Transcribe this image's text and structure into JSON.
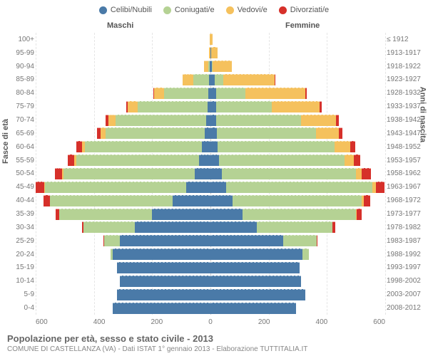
{
  "legend": {
    "items": [
      {
        "label": "Celibi/Nubili",
        "color": "#4a7aa8"
      },
      {
        "label": "Coniugati/e",
        "color": "#b5d294"
      },
      {
        "label": "Vedovi/e",
        "color": "#f5c15d"
      },
      {
        "label": "Divorziati/e",
        "color": "#d6302a"
      }
    ]
  },
  "header": {
    "male": "Maschi",
    "female": "Femmine"
  },
  "axis": {
    "left_title": "Fasce di età",
    "right_title": "Anni di nascita"
  },
  "x_ticks": [
    "600",
    "400",
    "200",
    "0",
    "200",
    "400",
    "600"
  ],
  "x_max": 600,
  "footer": {
    "title": "Popolazione per età, sesso e stato civile - 2013",
    "subtitle": "COMUNE DI CASTELLANZA (VA) - Dati ISTAT 1° gennaio 2013 - Elaborazione TUTTITALIA.IT"
  },
  "colors": {
    "celibi": "#4a7aa8",
    "coniugati": "#b5d294",
    "vedovi": "#f5c15d",
    "divorziati": "#d6302a",
    "bg": "#ffffff",
    "grid": "#e5e5e5",
    "center": "#cccccc",
    "text": "#666666"
  },
  "rows": [
    {
      "age": "100+",
      "birth": "≤ 1912",
      "m": {
        "c": 0,
        "co": 0,
        "v": 3,
        "d": 0
      },
      "f": {
        "c": 0,
        "co": 0,
        "v": 7,
        "d": 0
      }
    },
    {
      "age": "95-99",
      "birth": "1913-1917",
      "m": {
        "c": 0,
        "co": 0,
        "v": 6,
        "d": 0
      },
      "f": {
        "c": 2,
        "co": 0,
        "v": 22,
        "d": 0
      }
    },
    {
      "age": "90-94",
      "birth": "1918-1922",
      "m": {
        "c": 2,
        "co": 6,
        "v": 14,
        "d": 0
      },
      "f": {
        "c": 5,
        "co": 3,
        "v": 65,
        "d": 0
      }
    },
    {
      "age": "85-89",
      "birth": "1923-1927",
      "m": {
        "c": 5,
        "co": 55,
        "v": 35,
        "d": 0
      },
      "f": {
        "c": 15,
        "co": 30,
        "v": 175,
        "d": 2
      }
    },
    {
      "age": "80-84",
      "birth": "1928-1932",
      "m": {
        "c": 8,
        "co": 150,
        "v": 35,
        "d": 2
      },
      "f": {
        "c": 20,
        "co": 100,
        "v": 205,
        "d": 5
      }
    },
    {
      "age": "75-79",
      "birth": "1933-1937",
      "m": {
        "c": 10,
        "co": 240,
        "v": 35,
        "d": 5
      },
      "f": {
        "c": 20,
        "co": 190,
        "v": 165,
        "d": 8
      }
    },
    {
      "age": "70-74",
      "birth": "1938-1942",
      "m": {
        "c": 15,
        "co": 310,
        "v": 25,
        "d": 10
      },
      "f": {
        "c": 20,
        "co": 290,
        "v": 120,
        "d": 10
      }
    },
    {
      "age": "65-69",
      "birth": "1943-1947",
      "m": {
        "c": 20,
        "co": 340,
        "v": 18,
        "d": 12
      },
      "f": {
        "c": 22,
        "co": 340,
        "v": 78,
        "d": 12
      }
    },
    {
      "age": "60-64",
      "birth": "1948-1952",
      "m": {
        "c": 30,
        "co": 400,
        "v": 12,
        "d": 18
      },
      "f": {
        "c": 25,
        "co": 400,
        "v": 55,
        "d": 18
      }
    },
    {
      "age": "55-59",
      "birth": "1953-1957",
      "m": {
        "c": 40,
        "co": 420,
        "v": 8,
        "d": 22
      },
      "f": {
        "c": 30,
        "co": 430,
        "v": 32,
        "d": 22
      }
    },
    {
      "age": "50-54",
      "birth": "1958-1962",
      "m": {
        "c": 55,
        "co": 450,
        "v": 5,
        "d": 25
      },
      "f": {
        "c": 40,
        "co": 460,
        "v": 20,
        "d": 30
      }
    },
    {
      "age": "45-49",
      "birth": "1963-1967",
      "m": {
        "c": 85,
        "co": 490,
        "v": 3,
        "d": 30
      },
      "f": {
        "c": 55,
        "co": 500,
        "v": 12,
        "d": 30
      }
    },
    {
      "age": "40-44",
      "birth": "1968-1972",
      "m": {
        "c": 130,
        "co": 420,
        "v": 2,
        "d": 20
      },
      "f": {
        "c": 75,
        "co": 445,
        "v": 6,
        "d": 22
      }
    },
    {
      "age": "35-39",
      "birth": "1973-1977",
      "m": {
        "c": 200,
        "co": 320,
        "v": 0,
        "d": 12
      },
      "f": {
        "c": 110,
        "co": 390,
        "v": 3,
        "d": 15
      }
    },
    {
      "age": "30-34",
      "birth": "1978-1982",
      "m": {
        "c": 260,
        "co": 175,
        "v": 0,
        "d": 5
      },
      "f": {
        "c": 160,
        "co": 260,
        "v": 0,
        "d": 8
      }
    },
    {
      "age": "25-29",
      "birth": "1983-1987",
      "m": {
        "c": 310,
        "co": 55,
        "v": 0,
        "d": 2
      },
      "f": {
        "c": 250,
        "co": 115,
        "v": 0,
        "d": 3
      }
    },
    {
      "age": "20-24",
      "birth": "1988-1992",
      "m": {
        "c": 335,
        "co": 8,
        "v": 0,
        "d": 0
      },
      "f": {
        "c": 315,
        "co": 22,
        "v": 0,
        "d": 0
      }
    },
    {
      "age": "15-19",
      "birth": "1993-1997",
      "m": {
        "c": 320,
        "co": 0,
        "v": 0,
        "d": 0
      },
      "f": {
        "c": 305,
        "co": 0,
        "v": 0,
        "d": 0
      }
    },
    {
      "age": "10-14",
      "birth": "1998-2002",
      "m": {
        "c": 310,
        "co": 0,
        "v": 0,
        "d": 0
      },
      "f": {
        "c": 310,
        "co": 0,
        "v": 0,
        "d": 0
      }
    },
    {
      "age": "5-9",
      "birth": "2003-2007",
      "m": {
        "c": 320,
        "co": 0,
        "v": 0,
        "d": 0
      },
      "f": {
        "c": 325,
        "co": 0,
        "v": 0,
        "d": 0
      }
    },
    {
      "age": "0-4",
      "birth": "2008-2012",
      "m": {
        "c": 335,
        "co": 0,
        "v": 0,
        "d": 0
      },
      "f": {
        "c": 295,
        "co": 0,
        "v": 0,
        "d": 0
      }
    }
  ]
}
